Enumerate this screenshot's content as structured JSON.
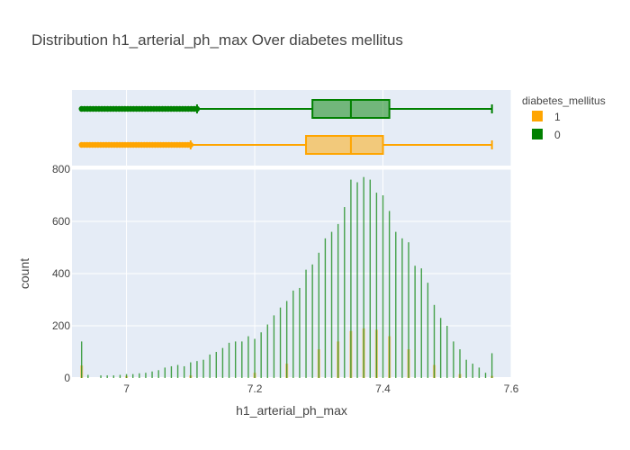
{
  "chart_data": {
    "type": "histogram",
    "title": "Distribution h1_arterial_ph_max Over diabetes mellitus",
    "xlabel": "h1_arterial_ph_max",
    "ylabel": "count",
    "xlim": [
      6.915,
      7.6
    ],
    "ylim": [
      0,
      800
    ],
    "x_ticks": [
      7,
      7.2,
      7.4,
      7.6
    ],
    "x_tick_labels": [
      "7",
      "7.2",
      "7.4",
      "7.6"
    ],
    "y_ticks": [
      0,
      200,
      400,
      600,
      800
    ],
    "y_tick_labels": [
      "0",
      "200",
      "400",
      "600",
      "800"
    ],
    "grid": true,
    "legend": {
      "title": "diabetes_mellitus",
      "position": "top-right",
      "entries": [
        {
          "label": "1",
          "color": "#FFA500"
        },
        {
          "label": "0",
          "color": "#008000"
        }
      ]
    },
    "series": [
      {
        "name": "1",
        "color": "#FFA500",
        "box": {
          "min": 6.93,
          "q1": 7.28,
          "median": 7.35,
          "q3": 7.4,
          "max": 7.57,
          "whisker_low": 7.1,
          "outlier_range": [
            6.93,
            7.1
          ]
        },
        "spikes": [
          [
            6.93,
            48
          ],
          [
            7.0,
            8
          ],
          [
            7.1,
            10
          ],
          [
            7.2,
            20
          ],
          [
            7.25,
            55
          ],
          [
            7.3,
            110
          ],
          [
            7.33,
            140
          ],
          [
            7.35,
            180
          ],
          [
            7.37,
            190
          ],
          [
            7.39,
            185
          ],
          [
            7.41,
            160
          ],
          [
            7.44,
            110
          ],
          [
            7.48,
            50
          ],
          [
            7.52,
            15
          ],
          [
            7.57,
            8
          ]
        ]
      },
      {
        "name": "0",
        "color": "#008000",
        "box": {
          "min": 6.93,
          "q1": 7.29,
          "median": 7.35,
          "q3": 7.41,
          "max": 7.57,
          "whisker_low": 7.11,
          "outlier_range": [
            6.93,
            7.11
          ]
        },
        "spikes": [
          [
            6.93,
            140
          ],
          [
            6.94,
            12
          ],
          [
            6.96,
            10
          ],
          [
            6.97,
            10
          ],
          [
            6.98,
            10
          ],
          [
            6.99,
            12
          ],
          [
            7.0,
            15
          ],
          [
            7.01,
            15
          ],
          [
            7.02,
            18
          ],
          [
            7.03,
            20
          ],
          [
            7.04,
            25
          ],
          [
            7.05,
            30
          ],
          [
            7.06,
            40
          ],
          [
            7.07,
            45
          ],
          [
            7.08,
            50
          ],
          [
            7.09,
            45
          ],
          [
            7.1,
            60
          ],
          [
            7.11,
            65
          ],
          [
            7.12,
            70
          ],
          [
            7.13,
            90
          ],
          [
            7.14,
            100
          ],
          [
            7.15,
            115
          ],
          [
            7.16,
            135
          ],
          [
            7.17,
            140
          ],
          [
            7.18,
            140
          ],
          [
            7.19,
            160
          ],
          [
            7.2,
            150
          ],
          [
            7.21,
            175
          ],
          [
            7.22,
            205
          ],
          [
            7.23,
            240
          ],
          [
            7.24,
            270
          ],
          [
            7.25,
            295
          ],
          [
            7.26,
            335
          ],
          [
            7.27,
            345
          ],
          [
            7.28,
            415
          ],
          [
            7.29,
            435
          ],
          [
            7.3,
            480
          ],
          [
            7.31,
            535
          ],
          [
            7.32,
            560
          ],
          [
            7.33,
            590
          ],
          [
            7.34,
            655
          ],
          [
            7.35,
            760
          ],
          [
            7.36,
            750
          ],
          [
            7.37,
            770
          ],
          [
            7.38,
            760
          ],
          [
            7.39,
            710
          ],
          [
            7.4,
            700
          ],
          [
            7.41,
            640
          ],
          [
            7.42,
            560
          ],
          [
            7.43,
            535
          ],
          [
            7.44,
            520
          ],
          [
            7.45,
            430
          ],
          [
            7.46,
            420
          ],
          [
            7.47,
            365
          ],
          [
            7.48,
            280
          ],
          [
            7.49,
            230
          ],
          [
            7.5,
            200
          ],
          [
            7.51,
            140
          ],
          [
            7.52,
            110
          ],
          [
            7.53,
            70
          ],
          [
            7.54,
            55
          ],
          [
            7.55,
            40
          ],
          [
            7.56,
            20
          ],
          [
            7.57,
            95
          ]
        ]
      }
    ]
  }
}
